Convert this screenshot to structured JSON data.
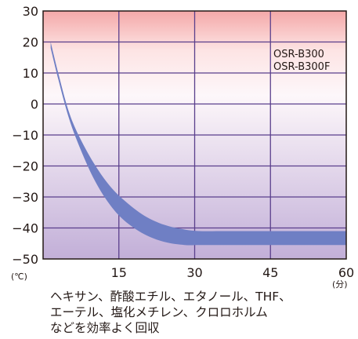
{
  "chart_data": {
    "type": "area",
    "title": "",
    "xlabel": "",
    "ylabel": "",
    "x_unit": "(分)",
    "y_unit": "(℃)",
    "xlim": [
      0,
      60
    ],
    "ylim": [
      -50,
      30
    ],
    "x_ticks": [
      "15",
      "30",
      "45",
      "60"
    ],
    "y_ticks": [
      "30",
      "20",
      "10",
      "0",
      "−10",
      "−20",
      "−30",
      "−40",
      "−50"
    ],
    "grid": true,
    "legend": [
      "OSR-B300",
      "OSR-B300F"
    ],
    "legend_position": "top-right",
    "band": {
      "x": [
        1.5,
        3,
        5,
        7,
        10,
        13,
        16,
        20,
        24,
        28,
        31,
        35,
        40,
        45,
        50,
        55,
        60
      ],
      "upper": [
        20,
        10,
        -2,
        -10,
        -19,
        -26,
        -31,
        -36,
        -39,
        -40.5,
        -41,
        -41,
        -41,
        -41,
        -41,
        -41,
        -41
      ],
      "lower": [
        18,
        8,
        -4,
        -13,
        -24,
        -32,
        -37.5,
        -42,
        -44.5,
        -45.5,
        -45.5,
        -45.5,
        -45.5,
        -45.5,
        -45.5,
        -45.5,
        -45.5
      ]
    },
    "colors": {
      "band": "#6f7fc4",
      "grid": "#5a3f8c",
      "axis": "#231815",
      "bg_top": "#f4a8a8",
      "bg_mid": "#ffffff",
      "bg_bottom": "#c2afd8"
    }
  },
  "caption": {
    "line1": "ヘキサン、酢酸エチル、エタノール、THF、",
    "line2": "エーテル、塩化メチレン、クロロホルム",
    "line3": "などを効率よく回収"
  }
}
